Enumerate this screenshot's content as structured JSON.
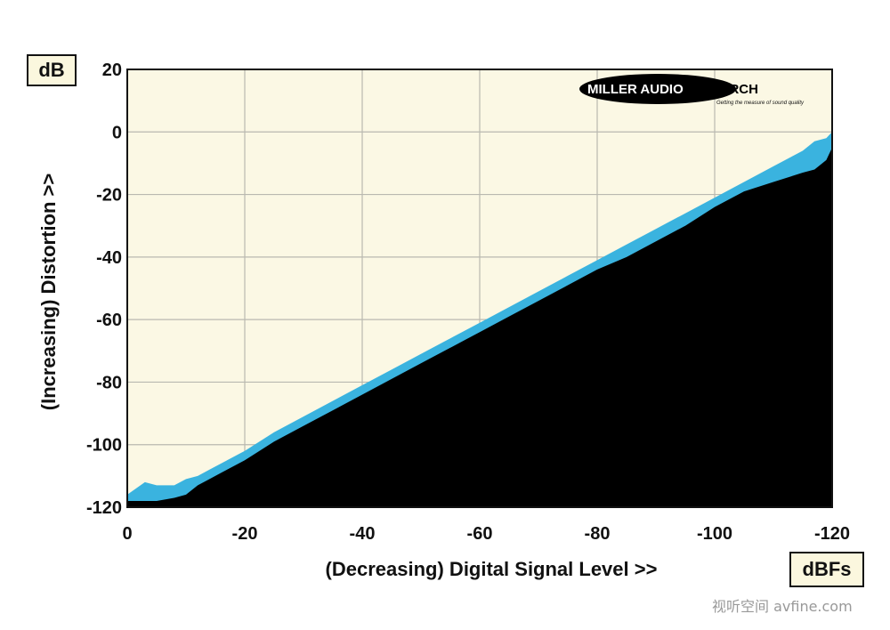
{
  "chart_data": {
    "type": "area",
    "xlabel": "(Decreasing) Digital Signal Level >>",
    "ylabel": "(Increasing) Distortion >>",
    "x_unit": "dBFs",
    "y_unit": "dB",
    "xlim": [
      0,
      -120
    ],
    "ylim": [
      -120,
      20
    ],
    "x_ticks": [
      "0",
      "-20",
      "-40",
      "-60",
      "-80",
      "-100",
      "-120"
    ],
    "y_ticks": [
      "20",
      "0",
      "-20",
      "-40",
      "-60",
      "-80",
      "-100",
      "-120"
    ],
    "grid": true,
    "series": [
      {
        "color": "#3ab3df",
        "x": [
          0,
          -3,
          -5,
          -8,
          -10,
          -12,
          -14,
          -16,
          -20,
          -25,
          -30,
          -35,
          -40,
          -45,
          -50,
          -55,
          -60,
          -65,
          -70,
          -75,
          -80,
          -85,
          -90,
          -95,
          -100,
          -105,
          -110,
          -115,
          -117,
          -119,
          -120
        ],
        "upper": [
          -116,
          -112,
          -113,
          -113,
          -111,
          -110,
          -108,
          -106,
          -102,
          -96,
          -91,
          -86,
          -81,
          -76,
          -71,
          -66,
          -61,
          -56,
          -51,
          -46,
          -41,
          -36,
          -31,
          -26,
          -21,
          -16,
          -11,
          -6,
          -3,
          -2,
          0
        ],
        "lower": [
          -118,
          -118,
          -118,
          -117,
          -116,
          -113,
          -111,
          -109,
          -105,
          -99,
          -94,
          -89,
          -84,
          -79,
          -74,
          -69,
          -64,
          -59,
          -54,
          -49,
          -44,
          -40,
          -35,
          -30,
          -24,
          -19,
          -16,
          -13,
          -12,
          -9,
          -5
        ]
      }
    ]
  },
  "logo": {
    "main_left": "MILLER AUDIO",
    "main_right": "RESEARCH",
    "tagline": "Getting the measure of sound quality"
  },
  "watermark": "视听空间 avfine.com"
}
